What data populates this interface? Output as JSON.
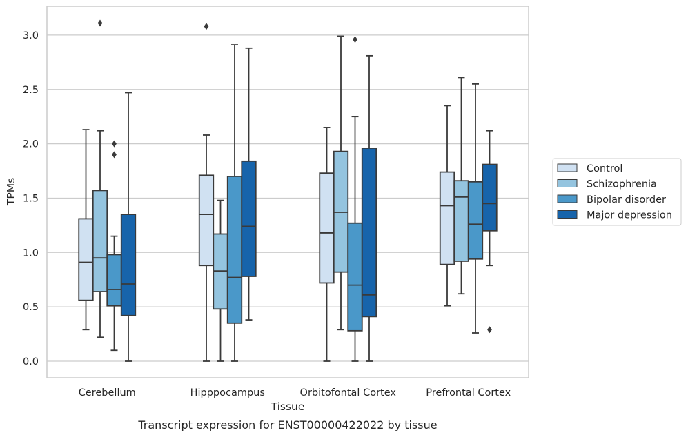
{
  "caption": "Transcript expression for ENST00000422022 by tissue",
  "chart_data": {
    "type": "box",
    "title": "",
    "xlabel": "Tissue",
    "ylabel": "TPMs",
    "ylim": [
      -0.15,
      3.25
    ],
    "yticks": [
      0.0,
      0.5,
      1.0,
      1.5,
      2.0,
      2.5,
      3.0
    ],
    "ytick_labels": [
      "0.0",
      "0.5",
      "1.0",
      "1.5",
      "2.0",
      "2.5",
      "3.0"
    ],
    "grid": "horizontal",
    "legend_position": "outside-right",
    "categories": [
      "Cerebellum",
      "Hipppocampus",
      "Orbitofontal Cortex",
      "Prefrontal Cortex"
    ],
    "series": [
      {
        "name": "Control",
        "color": "#d0e1f2",
        "boxes": [
          {
            "whislo": 0.29,
            "q1": 0.56,
            "med": 0.91,
            "q3": 1.31,
            "whishi": 2.13,
            "fliers": []
          },
          {
            "whislo": 0.0,
            "q1": 0.88,
            "med": 1.35,
            "q3": 1.71,
            "whishi": 2.08,
            "fliers": [
              3.08
            ]
          },
          {
            "whislo": 0.0,
            "q1": 0.72,
            "med": 1.18,
            "q3": 1.73,
            "whishi": 2.15,
            "fliers": []
          },
          {
            "whislo": 0.51,
            "q1": 0.89,
            "med": 1.43,
            "q3": 1.74,
            "whishi": 2.35,
            "fliers": []
          }
        ]
      },
      {
        "name": "Schizophrenia",
        "color": "#94c4df",
        "boxes": [
          {
            "whislo": 0.22,
            "q1": 0.64,
            "med": 0.95,
            "q3": 1.57,
            "whishi": 2.12,
            "fliers": [
              3.11
            ]
          },
          {
            "whislo": 0.0,
            "q1": 0.48,
            "med": 0.83,
            "q3": 1.17,
            "whishi": 1.48,
            "fliers": []
          },
          {
            "whislo": 0.29,
            "q1": 0.82,
            "med": 1.37,
            "q3": 1.93,
            "whishi": 2.99,
            "fliers": []
          },
          {
            "whislo": 0.62,
            "q1": 0.92,
            "med": 1.51,
            "q3": 1.66,
            "whishi": 2.61,
            "fliers": []
          }
        ]
      },
      {
        "name": "Bipolar disorder",
        "color": "#4a98c9",
        "boxes": [
          {
            "whislo": 0.1,
            "q1": 0.51,
            "med": 0.66,
            "q3": 0.98,
            "whishi": 1.15,
            "fliers": [
              2.0,
              1.9
            ]
          },
          {
            "whislo": 0.0,
            "q1": 0.35,
            "med": 0.77,
            "q3": 1.7,
            "whishi": 2.91,
            "fliers": []
          },
          {
            "whislo": 0.0,
            "q1": 0.28,
            "med": 0.7,
            "q3": 1.27,
            "whishi": 2.25,
            "fliers": [
              2.96
            ]
          },
          {
            "whislo": 0.26,
            "q1": 0.94,
            "med": 1.26,
            "q3": 1.65,
            "whishi": 2.55,
            "fliers": []
          }
        ]
      },
      {
        "name": "Major depression",
        "color": "#1764ab",
        "boxes": [
          {
            "whislo": 0.0,
            "q1": 0.42,
            "med": 0.71,
            "q3": 1.35,
            "whishi": 2.47,
            "fliers": []
          },
          {
            "whislo": 0.38,
            "q1": 0.78,
            "med": 1.24,
            "q3": 1.84,
            "whishi": 2.88,
            "fliers": []
          },
          {
            "whislo": 0.0,
            "q1": 0.41,
            "med": 0.61,
            "q3": 1.96,
            "whishi": 2.81,
            "fliers": []
          },
          {
            "whislo": 0.88,
            "q1": 1.2,
            "med": 1.45,
            "q3": 1.81,
            "whishi": 2.12,
            "fliers": [
              0.29
            ]
          }
        ]
      }
    ]
  }
}
